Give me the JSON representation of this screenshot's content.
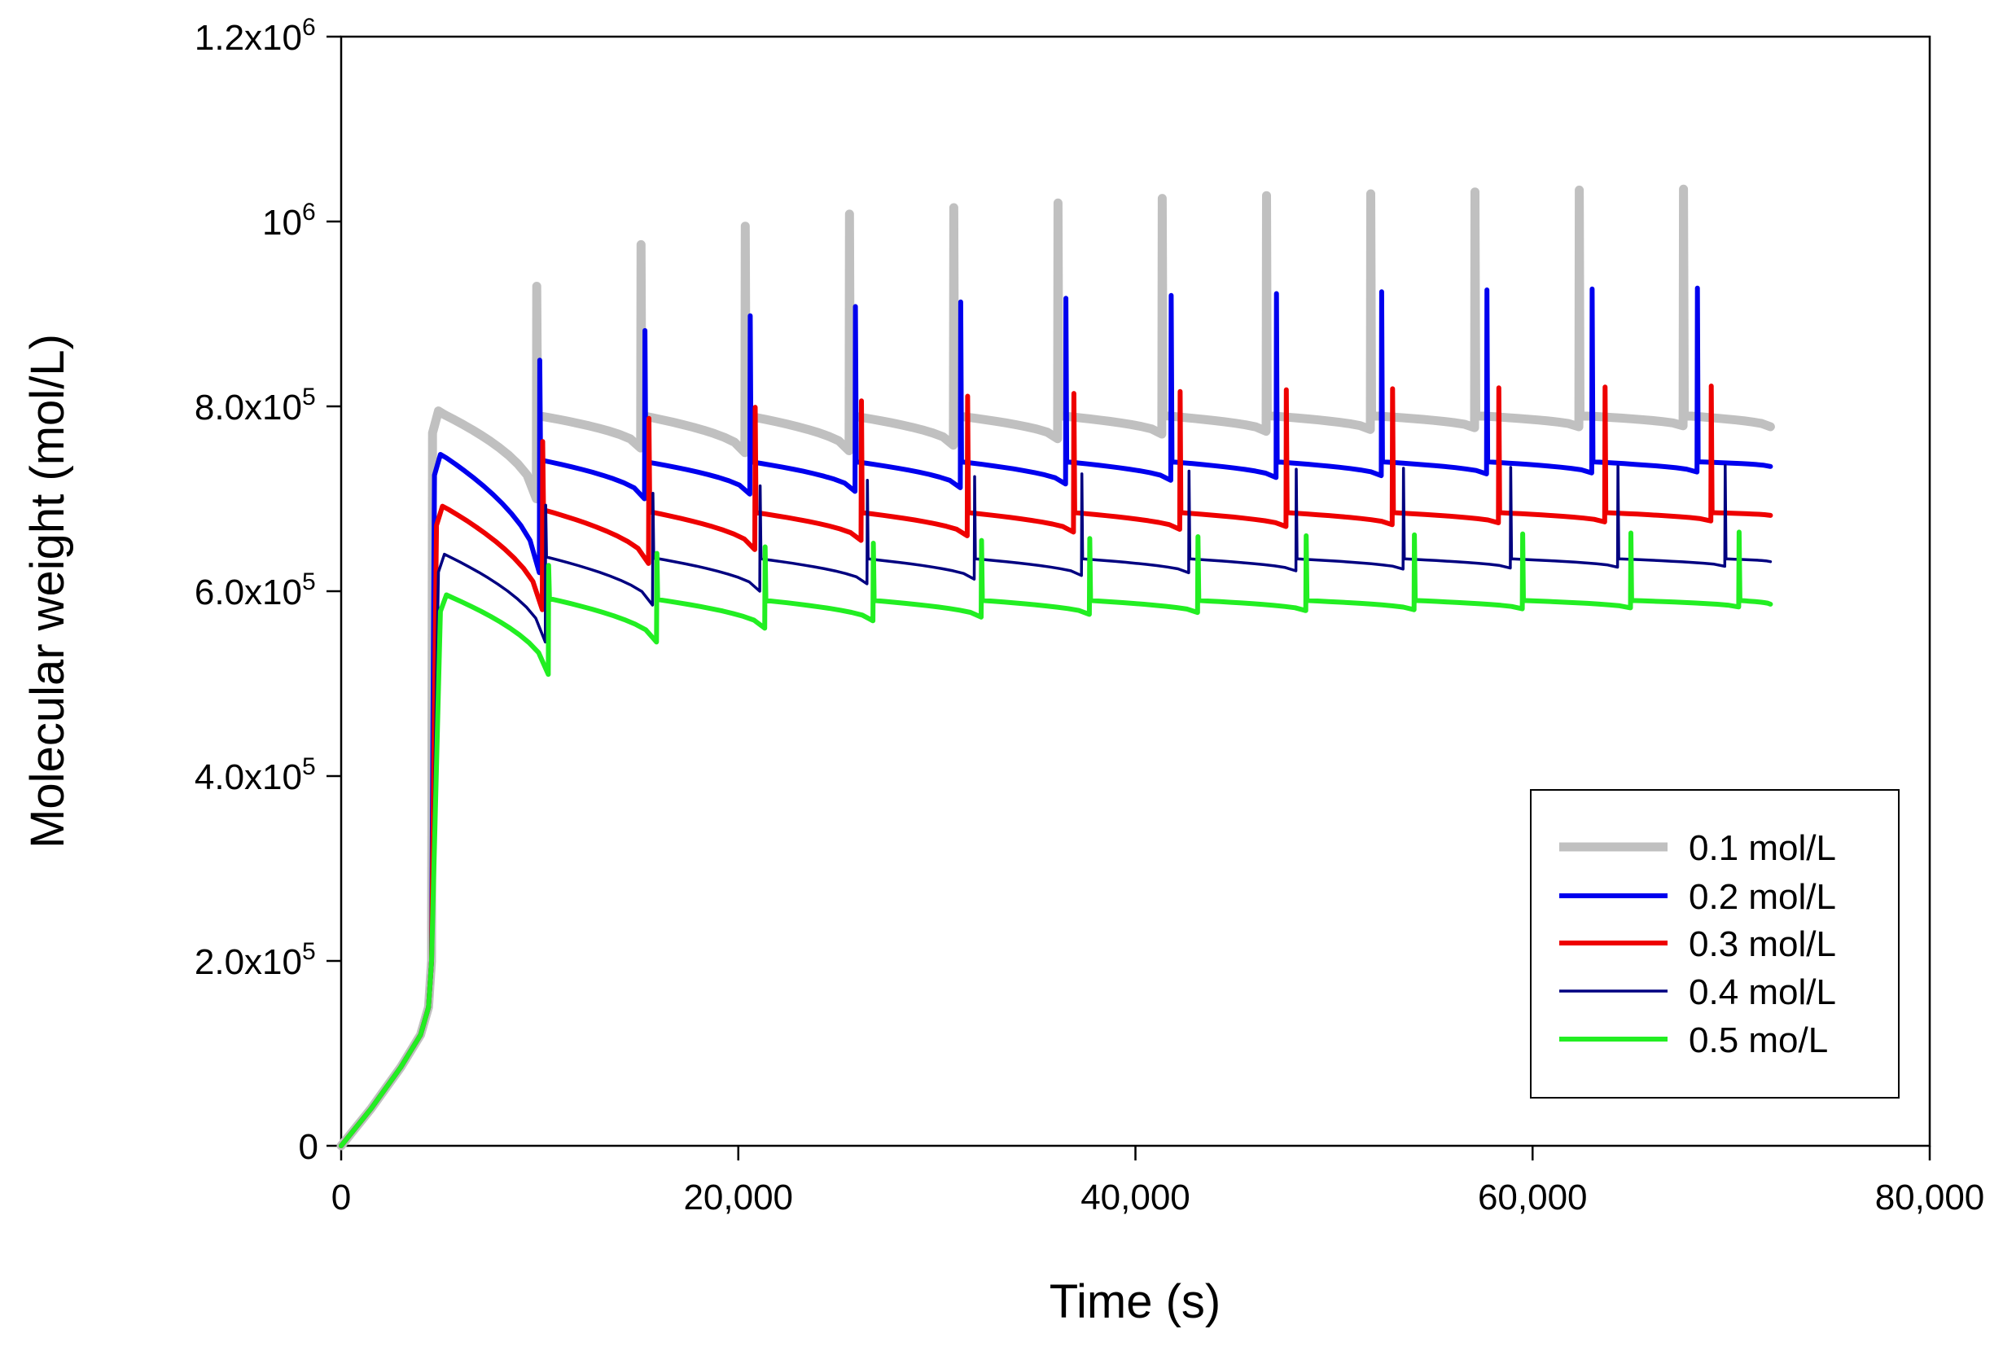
{
  "chart_data": {
    "type": "line",
    "title": "",
    "xlabel": "Time (s)",
    "ylabel": "Molecular weight (mol/L)",
    "xlim": [
      0,
      80000
    ],
    "ylim": [
      0,
      1200000
    ],
    "x_ticks": [
      {
        "value": 0,
        "label": "0"
      },
      {
        "value": 20000,
        "label": "20,000"
      },
      {
        "value": 40000,
        "label": "40,000"
      },
      {
        "value": 60000,
        "label": "60,000"
      },
      {
        "value": 80000,
        "label": "80,000"
      }
    ],
    "y_ticks": [
      {
        "value": 0,
        "mant": "0",
        "exp": ""
      },
      {
        "value": 200000,
        "mant": "2.0x10",
        "exp": "5"
      },
      {
        "value": 400000,
        "mant": "4.0x10",
        "exp": "5"
      },
      {
        "value": 600000,
        "mant": "6.0x10",
        "exp": "5"
      },
      {
        "value": 800000,
        "mant": "8.0x10",
        "exp": "5"
      },
      {
        "value": 1000000,
        "mant": "10",
        "exp": "6"
      },
      {
        "value": 1200000,
        "mant": "1.2x10",
        "exp": "6"
      }
    ],
    "grid": false,
    "legend_position": "bottom-right",
    "series": [
      {
        "name": "0.1 mol/L",
        "color": "#c0c0c0",
        "line_weight": "thick",
        "cycle_start": 4600,
        "period": 5250,
        "end": 72000,
        "cycle_peaks": [
          795000,
          790000,
          790000,
          790000,
          790000,
          790000,
          790000,
          790000,
          790000,
          790000,
          790000,
          790000,
          790000
        ],
        "cycle_troughs": [
          700000,
          755000,
          750000,
          752000,
          758000,
          765000,
          770000,
          773000,
          775000,
          777000,
          778000,
          779000,
          778000
        ],
        "spikes": [
          930000,
          975000,
          995000,
          1008000,
          1015000,
          1020000,
          1025000,
          1028000,
          1030000,
          1032000,
          1034000,
          1035000
        ]
      },
      {
        "name": "0.2 mol/L",
        "color": "#0000ee",
        "line_weight": "medium",
        "cycle_start": 4700,
        "period": 5300,
        "end": 72000,
        "cycle_peaks": [
          748000,
          742000,
          740000,
          740000,
          740000,
          740000,
          740000,
          740000,
          740000,
          740000,
          740000,
          740000,
          740000
        ],
        "cycle_troughs": [
          620000,
          700000,
          705000,
          708000,
          712000,
          716000,
          720000,
          723000,
          725000,
          727000,
          728000,
          729000,
          735000
        ],
        "spikes": [
          850000,
          882000,
          898000,
          908000,
          913000,
          917000,
          920000,
          922000,
          924000,
          926000,
          927000,
          928000
        ]
      },
      {
        "name": "0.3 mol/L",
        "color": "#ee0000",
        "line_weight": "medium",
        "cycle_start": 4800,
        "period": 5350,
        "end": 72000,
        "cycle_peaks": [
          692000,
          688000,
          686000,
          685000,
          685000,
          685000,
          685000,
          685000,
          685000,
          685000,
          685000,
          685000,
          685000
        ],
        "cycle_troughs": [
          580000,
          630000,
          645000,
          655000,
          660000,
          664000,
          667000,
          670000,
          672000,
          674000,
          675000,
          676000,
          682000
        ],
        "spikes": [
          762000,
          787000,
          799000,
          806000,
          811000,
          814000,
          816000,
          818000,
          819000,
          820000,
          821000,
          822000
        ]
      },
      {
        "name": "0.4 mol/L",
        "color": "#000080",
        "line_weight": "thin",
        "cycle_start": 4900,
        "period": 5400,
        "end": 72000,
        "cycle_peaks": [
          640000,
          637000,
          636000,
          635000,
          635000,
          635000,
          635000,
          635000,
          635000,
          635000,
          635000,
          635000,
          635000
        ],
        "cycle_troughs": [
          545000,
          585000,
          600000,
          608000,
          613000,
          617000,
          620000,
          622000,
          624000,
          625000,
          626000,
          627000,
          632000
        ],
        "spikes": [
          693000,
          706000,
          714000,
          720000,
          724000,
          727000,
          730000,
          732000,
          733000,
          734000,
          735000,
          736000
        ]
      },
      {
        "name": "0.5 mo/L",
        "color": "#22ee22",
        "line_weight": "medium",
        "cycle_start": 5000,
        "period": 5450,
        "end": 72000,
        "cycle_peaks": [
          596000,
          592000,
          591000,
          590000,
          590000,
          590000,
          590000,
          590000,
          590000,
          590000,
          590000,
          590000,
          590000
        ],
        "cycle_troughs": [
          510000,
          545000,
          560000,
          568000,
          572000,
          575000,
          577000,
          579000,
          580000,
          581000,
          582000,
          583000,
          586000
        ],
        "spikes": [
          628000,
          641000,
          648000,
          652000,
          655000,
          657000,
          659000,
          660000,
          661000,
          662000,
          663000,
          664000
        ]
      }
    ],
    "ramp": [
      [
        0,
        0
      ],
      [
        1500,
        40000
      ],
      [
        3000,
        85000
      ],
      [
        4000,
        120000
      ],
      [
        4400,
        150000
      ],
      [
        4550,
        200000
      ]
    ]
  }
}
